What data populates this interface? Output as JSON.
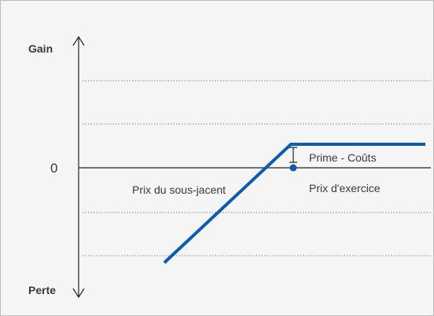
{
  "diagram": {
    "labels": {
      "gain": "Gain",
      "loss": "Perte",
      "zero": "0",
      "underlying_price": "Prix du sous-jacent",
      "premium_costs": "Prime - Coûts",
      "strike_price": "Prix d'exercice"
    },
    "colors": {
      "background": "#f5f5f5",
      "border": "#bdbdbd",
      "axis": "#222222",
      "gridline": "#8a8a8a",
      "payoff_line": "#0b5cad",
      "text": "#3a3a3a"
    },
    "payoff_shape": "short-put",
    "gridlines": "dotted"
  }
}
